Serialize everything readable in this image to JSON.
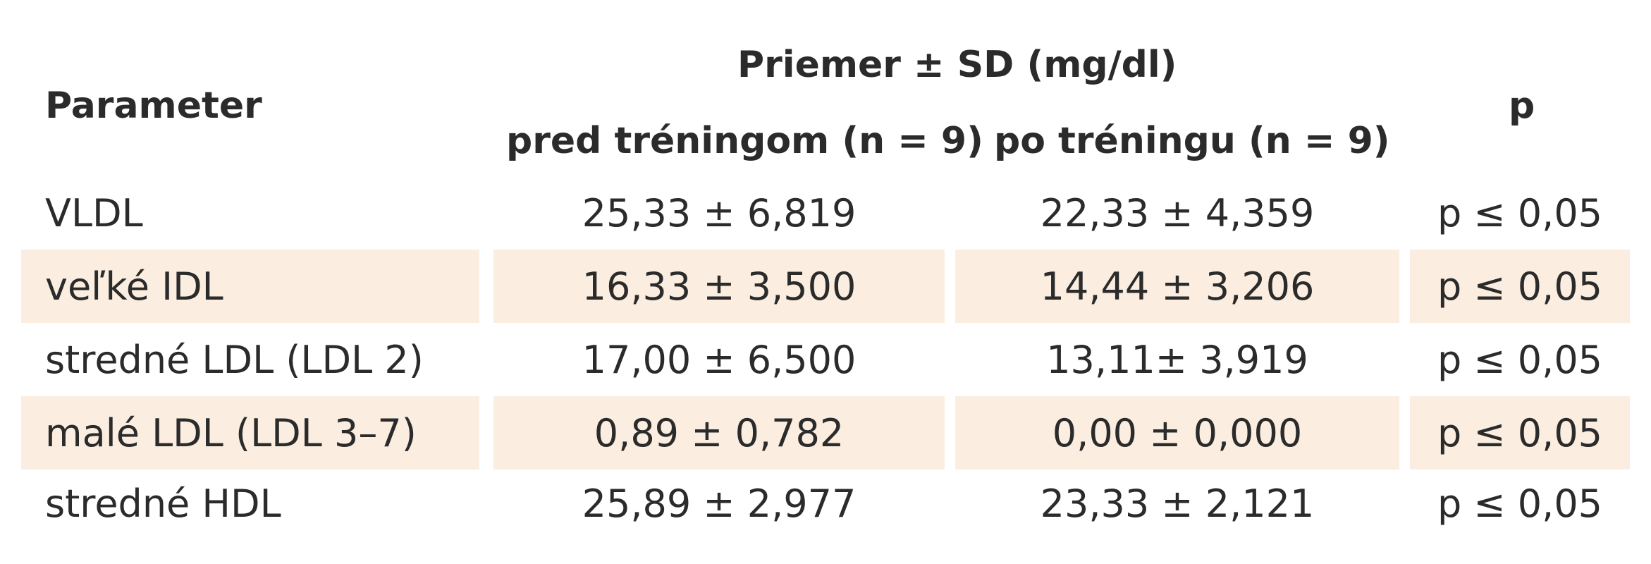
{
  "table": {
    "header": {
      "parameter": "Parameter",
      "mean_group": "Priemer ± SD (mg/dl)",
      "before": "pred tréningom (n = 9)",
      "after": "po tréningu (n = 9)",
      "p": "p"
    },
    "rows": [
      {
        "parameter": "VLDL",
        "before": "25,33 ± 6,819",
        "after": "22,33 ± 4,359",
        "p": "p ≤ 0,05",
        "shaded": false
      },
      {
        "parameter": "veľké IDL",
        "before": "16,33 ± 3,500",
        "after": "14,44 ± 3,206",
        "p": "p ≤ 0,05",
        "shaded": true
      },
      {
        "parameter": "stredné LDL (LDL 2)",
        "before": "17,00 ± 6,500",
        "after": "13,11± 3,919",
        "p": "p ≤ 0,05",
        "shaded": false
      },
      {
        "parameter": "malé LDL (LDL 3–7)",
        "before": "0,89 ± 0,782",
        "after": "0,00 ± 0,000",
        "p": "p ≤ 0,05",
        "shaded": true
      },
      {
        "parameter": "stredné HDL",
        "before": "25,89 ± 2,977",
        "after": "23,33 ± 2,121",
        "p": "p ≤ 0,05",
        "shaded": false
      }
    ],
    "shade_color": "#fbeee0"
  }
}
